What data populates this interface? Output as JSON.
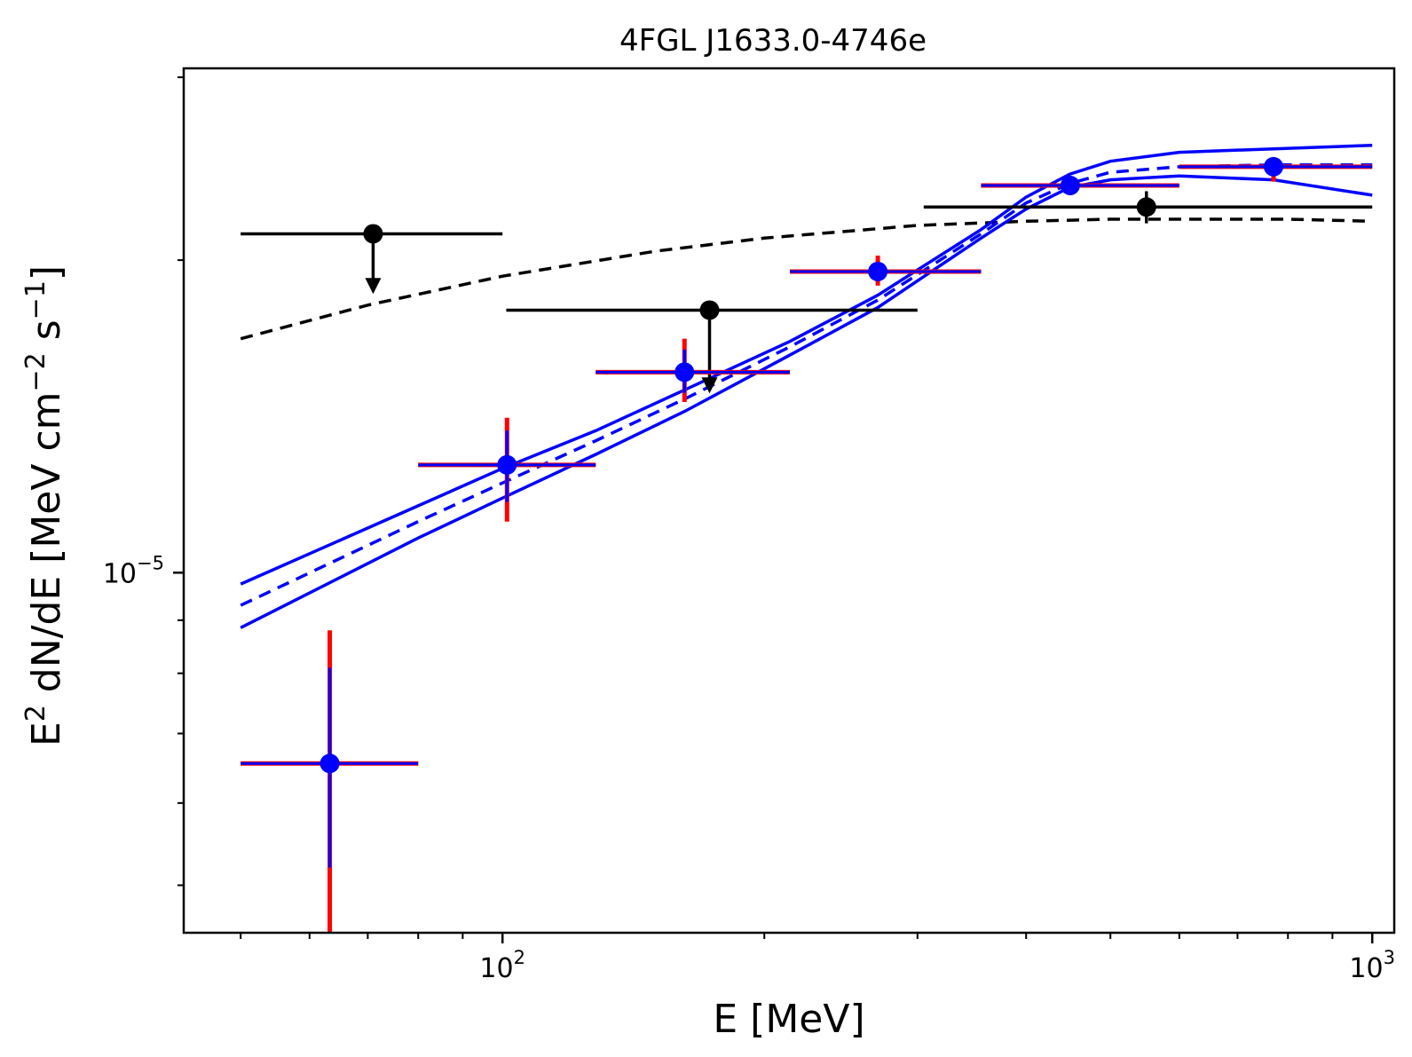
{
  "chart_data": {
    "type": "scatter",
    "title": "4FGL J1633.0-4746e",
    "xlabel": "E [MeV]",
    "ylabel_parts": {
      "base": "E",
      "sup1": "2",
      "mid": " dN/dE [MeV cm",
      "sup2": "−2",
      "mid2": " s",
      "sup3": "−1",
      "end": "]"
    },
    "x_scale": "log",
    "y_scale": "log",
    "xlim": [
      43,
      1060
    ],
    "ylim": [
      4.5e-06,
      3.06e-05
    ],
    "x_ticks": [
      {
        "value": 100,
        "base": "10",
        "exp": "2"
      },
      {
        "value": 1000,
        "base": "10",
        "exp": "3"
      }
    ],
    "y_ticks": [
      {
        "value": 1e-05,
        "base": "10",
        "exp": "−5"
      }
    ],
    "grid": false,
    "legend": "none",
    "colors": {
      "data": "#0000ff",
      "error_outer": "#ff0000",
      "upper_limit": "#000000",
      "model": "#0000ff",
      "alt_model": "#000000"
    },
    "points": [
      {
        "e": 63.3,
        "e_lo": 50.0,
        "e_hi": 80.0,
        "y": 6.55e-06,
        "y_lo_outer": 4.5e-06,
        "y_hi_outer": 8.8e-06,
        "y_lo_inner": 5.2e-06,
        "y_hi_inner": 8.1e-06
      },
      {
        "e": 101.2,
        "e_lo": 80.0,
        "e_hi": 128.0,
        "y": 1.27e-05,
        "y_lo_outer": 1.12e-05,
        "y_hi_outer": 1.41e-05,
        "y_lo_inner": 1.17e-05,
        "y_hi_inner": 1.37e-05
      },
      {
        "e": 161.9,
        "e_lo": 128.0,
        "e_hi": 214.0,
        "y": 1.56e-05,
        "y_lo_outer": 1.46e-05,
        "y_hi_outer": 1.68e-05,
        "y_lo_inner": 1.49e-05,
        "y_hi_inner": 1.64e-05
      },
      {
        "e": 270.1,
        "e_lo": 214.0,
        "e_hi": 355.0,
        "y": 1.95e-05,
        "y_lo_outer": 1.89e-05,
        "y_hi_outer": 2.02e-05,
        "y_lo_inner": 1.91e-05,
        "y_hi_inner": 1.99e-05
      },
      {
        "e": 449.5,
        "e_lo": 355.0,
        "e_hi": 600.0,
        "y": 2.36e-05,
        "y_lo_outer": 2.31e-05,
        "y_hi_outer": 2.41e-05,
        "y_lo_inner": 2.33e-05,
        "y_hi_inner": 2.39e-05
      },
      {
        "e": 770.0,
        "e_lo": 600.0,
        "e_hi": 1000.0,
        "y": 2.46e-05,
        "y_lo_outer": 2.38e-05,
        "y_hi_outer": 2.51e-05,
        "y_lo_inner": 2.42e-05,
        "y_hi_inner": 2.49e-05
      }
    ],
    "upper_limits": [
      {
        "e": 71.0,
        "e_lo": 50.0,
        "e_hi": 100.0,
        "y": 2.12e-05,
        "arrow_to": 1.87e-05
      },
      {
        "e": 173.0,
        "e_lo": 101.0,
        "e_hi": 300.0,
        "y": 1.79e-05,
        "arrow_to": 1.5e-05
      }
    ],
    "alt_point": {
      "e": 550.0,
      "e_lo": 305.0,
      "e_hi": 1000.0,
      "y": 2.25e-05,
      "y_lo": 2.17e-05,
      "y_hi": 2.33e-05
    },
    "model_curve": {
      "x": [
        50,
        80,
        100,
        128,
        162,
        214,
        270,
        355,
        400,
        449,
        500,
        600,
        770,
        1000
      ],
      "y": [
        9.3e-06,
        1.12e-05,
        1.22e-05,
        1.34e-05,
        1.47e-05,
        1.65e-05,
        1.83e-05,
        2.12e-05,
        2.27e-05,
        2.37e-05,
        2.43e-05,
        2.46e-05,
        2.47e-05,
        2.47e-05
      ]
    },
    "model_band_upper": {
      "x": [
        50,
        80,
        100,
        128,
        162,
        214,
        270,
        355,
        400,
        449,
        500,
        600,
        770,
        1000
      ],
      "y": [
        9.75e-06,
        1.16e-05,
        1.26e-05,
        1.37e-05,
        1.5e-05,
        1.67e-05,
        1.85e-05,
        2.14e-05,
        2.3e-05,
        2.42e-05,
        2.49e-05,
        2.54e-05,
        2.56e-05,
        2.58e-05
      ]
    },
    "model_band_lower": {
      "x": [
        50,
        80,
        100,
        128,
        162,
        214,
        270,
        355,
        400,
        449,
        500,
        600,
        770,
        1000
      ],
      "y": [
        8.85e-06,
        1.08e-05,
        1.18e-05,
        1.3e-05,
        1.43e-05,
        1.62e-05,
        1.8e-05,
        2.1e-05,
        2.24e-05,
        2.35e-05,
        2.39e-05,
        2.41e-05,
        2.39e-05,
        2.31e-05
      ]
    },
    "alt_model_curve": {
      "x": [
        50,
        70,
        100,
        150,
        200,
        300,
        400,
        500,
        600,
        800,
        1000
      ],
      "y": [
        1.68e-05,
        1.81e-05,
        1.93e-05,
        2.04e-05,
        2.1e-05,
        2.16e-05,
        2.18e-05,
        2.19e-05,
        2.19e-05,
        2.19e-05,
        2.18e-05
      ]
    }
  }
}
